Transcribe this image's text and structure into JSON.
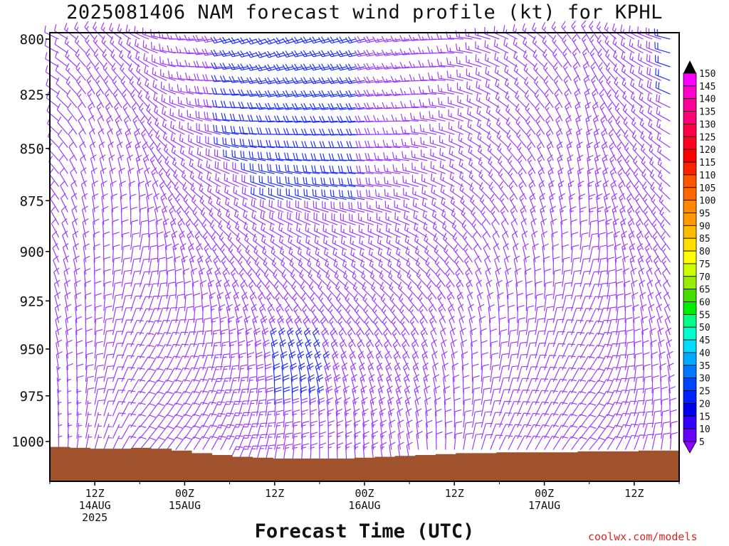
{
  "title": "2025081406 NAM forecast wind profile (kt) for KPHL",
  "xlabel": "Forecast Time (UTC)",
  "credit": "coolwx.com/models",
  "chart_data": {
    "type": "wind-barb-time-height",
    "title": "2025081406 NAM forecast wind profile (kt) for KPHL",
    "xlabel": "Forecast Time (UTC)",
    "ylabel": "",
    "y_axis": {
      "ticks": [
        800,
        825,
        850,
        875,
        900,
        925,
        950,
        975,
        1000
      ],
      "range_hPa": [
        800,
        1020
      ],
      "scale": "log-pressure"
    },
    "x_axis": {
      "range": [
        "2025-08-14T06Z",
        "2025-08-17T18Z"
      ],
      "ticks": [
        {
          "time": "2025-08-14T12Z",
          "lines": [
            "12Z",
            "14AUG",
            "2025"
          ]
        },
        {
          "time": "2025-08-15T00Z",
          "lines": [
            "00Z",
            "15AUG"
          ]
        },
        {
          "time": "2025-08-15T12Z",
          "lines": [
            "12Z"
          ]
        },
        {
          "time": "2025-08-16T00Z",
          "lines": [
            "00Z",
            "16AUG"
          ]
        },
        {
          "time": "2025-08-16T12Z",
          "lines": [
            "12Z"
          ]
        },
        {
          "time": "2025-08-17T00Z",
          "lines": [
            "00Z",
            "17AUG"
          ]
        },
        {
          "time": "2025-08-17T12Z",
          "lines": [
            "12Z"
          ]
        }
      ]
    },
    "levels_hPa": [
      800,
      825,
      850,
      875,
      900,
      925,
      950,
      975,
      1000
    ],
    "forecast_hours": [
      0,
      6,
      12,
      18,
      24,
      30,
      36,
      42,
      48,
      54,
      60,
      66,
      72,
      78,
      84
    ],
    "wind_direction_deg": [
      [
        290,
        320,
        300,
        270,
        255,
        250,
        255,
        255,
        260,
        270,
        290,
        310,
        330,
        300,
        280
      ],
      [
        300,
        330,
        320,
        285,
        270,
        260,
        260,
        260,
        265,
        280,
        300,
        320,
        340,
        310,
        290
      ],
      [
        310,
        340,
        340,
        300,
        285,
        275,
        270,
        270,
        275,
        290,
        310,
        330,
        350,
        320,
        300
      ],
      [
        320,
        350,
        355,
        320,
        300,
        290,
        285,
        280,
        285,
        300,
        320,
        340,
        355,
        330,
        310
      ],
      [
        330,
        355,
        10,
        340,
        320,
        305,
        300,
        295,
        300,
        315,
        335,
        350,
        10,
        340,
        320
      ],
      [
        340,
        0,
        20,
        0,
        340,
        325,
        320,
        315,
        315,
        330,
        350,
        5,
        20,
        350,
        330
      ],
      [
        345,
        5,
        30,
        20,
        0,
        345,
        335,
        330,
        330,
        345,
        5,
        15,
        30,
        0,
        340
      ],
      [
        350,
        10,
        35,
        30,
        15,
        0,
        350,
        345,
        340,
        355,
        15,
        25,
        35,
        10,
        350
      ],
      [
        355,
        15,
        40,
        35,
        25,
        10,
        0,
        355,
        350,
        5,
        25,
        30,
        40,
        20,
        0
      ]
    ],
    "wind_speed_kt": [
      [
        10,
        15,
        15,
        15,
        20,
        20,
        20,
        20,
        15,
        15,
        15,
        15,
        15,
        15,
        20
      ],
      [
        10,
        15,
        15,
        15,
        20,
        20,
        20,
        20,
        15,
        15,
        15,
        15,
        15,
        15,
        20
      ],
      [
        10,
        10,
        15,
        15,
        20,
        20,
        20,
        20,
        15,
        15,
        15,
        15,
        15,
        15,
        15
      ],
      [
        10,
        10,
        10,
        15,
        15,
        20,
        20,
        20,
        15,
        15,
        15,
        15,
        15,
        15,
        15
      ],
      [
        10,
        10,
        10,
        15,
        15,
        15,
        15,
        15,
        15,
        15,
        10,
        10,
        10,
        15,
        15
      ],
      [
        10,
        10,
        10,
        10,
        15,
        15,
        15,
        15,
        15,
        15,
        10,
        10,
        10,
        10,
        10
      ],
      [
        10,
        10,
        10,
        10,
        15,
        20,
        20,
        15,
        15,
        10,
        10,
        10,
        10,
        10,
        10
      ],
      [
        5,
        10,
        10,
        10,
        15,
        20,
        20,
        15,
        15,
        10,
        10,
        10,
        10,
        10,
        10
      ],
      [
        5,
        5,
        10,
        10,
        15,
        15,
        15,
        15,
        10,
        10,
        10,
        10,
        10,
        10,
        10
      ]
    ],
    "surface_pressure_hPa": [
      1003,
      1003.5,
      1004,
      1004,
      1003.5,
      1004,
      1005,
      1006.5,
      1007.5,
      1008.5,
      1009,
      1009.5,
      1009.5,
      1009.5,
      1009.5,
      1009,
      1008.5,
      1008,
      1007.5,
      1007,
      1006.5,
      1006.5,
      1006,
      1006,
      1006,
      1006,
      1005.5,
      1005.5,
      1005.5,
      1005,
      1005
    ],
    "colorbar": {
      "labels": [
        150,
        145,
        140,
        135,
        130,
        125,
        120,
        115,
        110,
        105,
        100,
        95,
        90,
        85,
        80,
        75,
        70,
        65,
        60,
        55,
        50,
        45,
        40,
        35,
        30,
        25,
        20,
        15,
        10,
        5
      ],
      "colors": [
        "#ff00ff",
        "#ff00cc",
        "#ff0099",
        "#ff0077",
        "#ff0044",
        "#ff0022",
        "#ff0000",
        "#ff2200",
        "#ff5500",
        "#ff6600",
        "#ff8800",
        "#ff9900",
        "#ffbb00",
        "#ffdd00",
        "#ffff00",
        "#ccff00",
        "#99ee00",
        "#44dd00",
        "#00ee00",
        "#00ff88",
        "#00ffcc",
        "#00ddff",
        "#00aaff",
        "#0077ff",
        "#0044ff",
        "#0022ff",
        "#0000ee",
        "#3300ff",
        "#6600ff",
        "#8800ff"
      ]
    },
    "colors": {
      "light_barb": "#9a3dff",
      "strong_barb": "#2030ff",
      "terrain": "#a0522d"
    }
  }
}
